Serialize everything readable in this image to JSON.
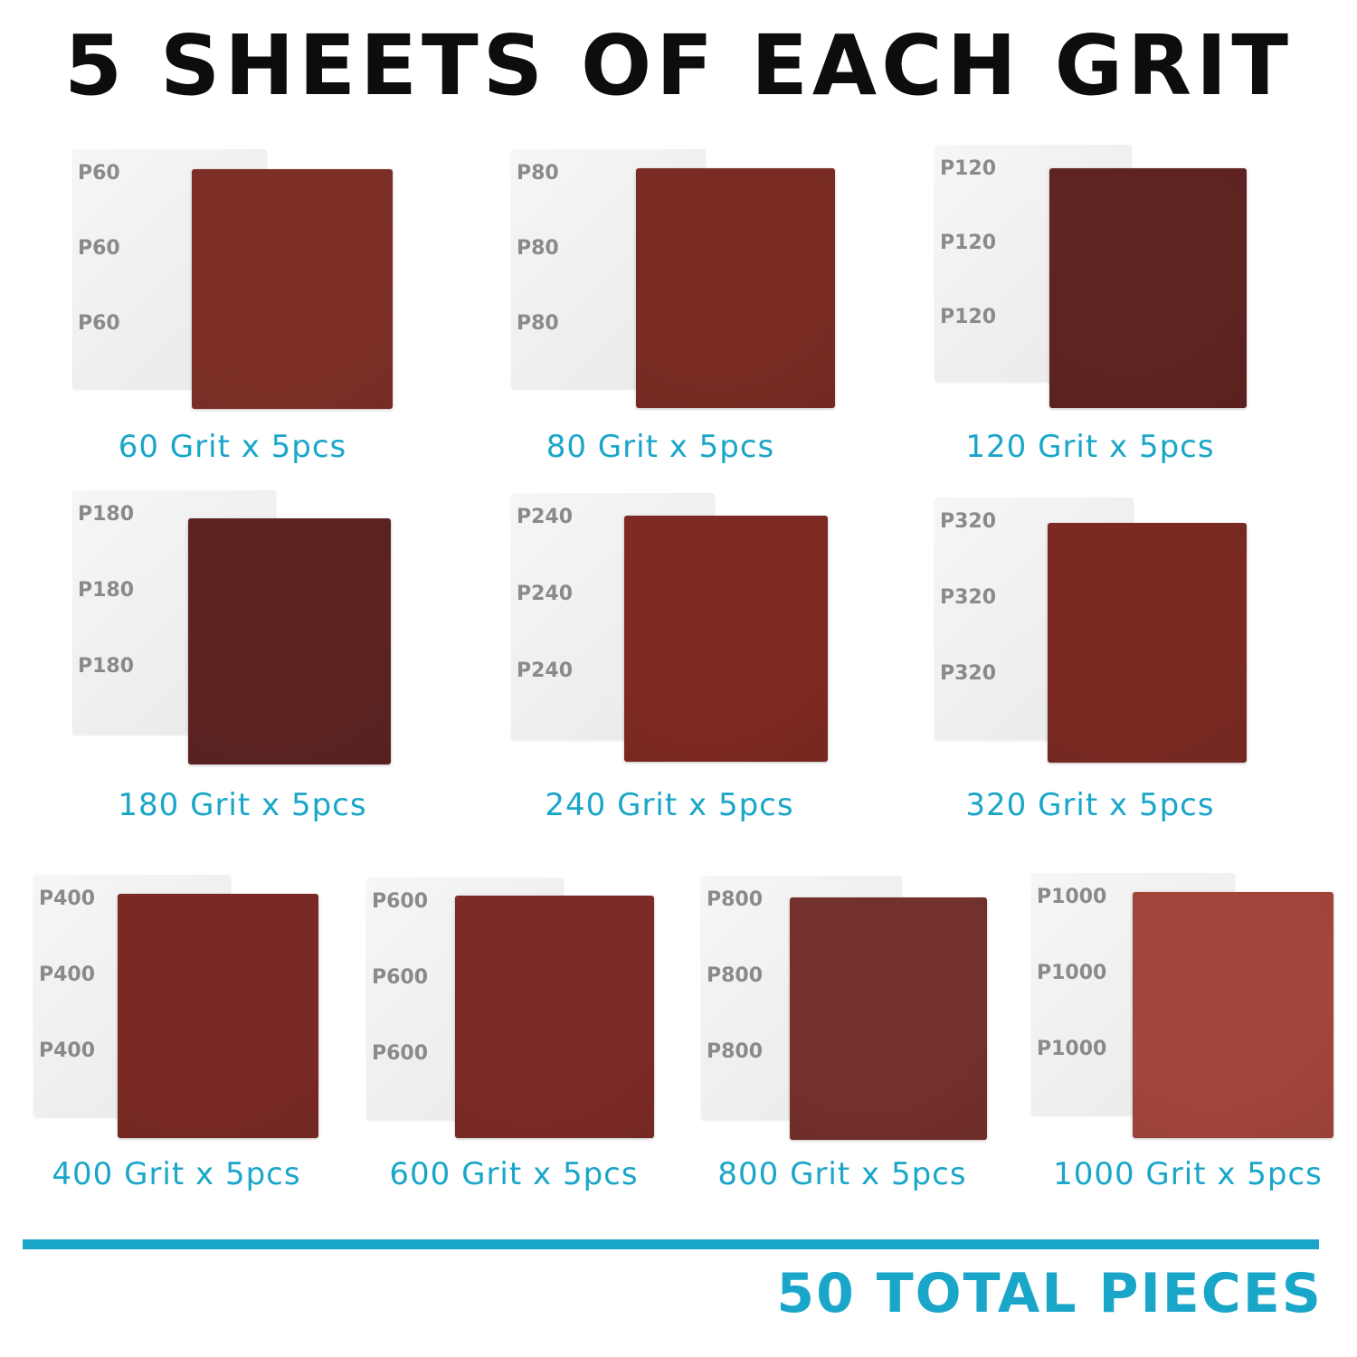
{
  "title": "5 SHEETS OF EACH GRIT",
  "items": [
    {
      "label": "60 Grit x 5pcs",
      "backing_text": "P60",
      "color": "#7d2f27"
    },
    {
      "label": "80 Grit x 5pcs",
      "backing_text": "P80",
      "color": "#7a2c24"
    },
    {
      "label": "120 Grit x 5pcs",
      "backing_text": "P120",
      "color": "#5f2320"
    },
    {
      "label": "180 Grit x 5pcs",
      "backing_text": "P180",
      "color": "#5c2321"
    },
    {
      "label": "240 Grit x 5pcs",
      "backing_text": "P240",
      "color": "#7e2a22"
    },
    {
      "label": "320 Grit x 5pcs",
      "backing_text": "P320",
      "color": "#7a2a23"
    },
    {
      "label": "400 Grit x 5pcs",
      "backing_text": "P400",
      "color": "#7a2a24"
    },
    {
      "label": "600 Grit x 5pcs",
      "backing_text": "P600",
      "color": "#7d2b26"
    },
    {
      "label": "800 Grit x 5pcs",
      "backing_text": "P800",
      "color": "#74302c"
    },
    {
      "label": "1000 Grit x 5pcs",
      "backing_text": "P1000",
      "color": "#a3453a"
    }
  ],
  "total": "50 TOTAL PIECES",
  "accent_color": "#1aa6c9"
}
